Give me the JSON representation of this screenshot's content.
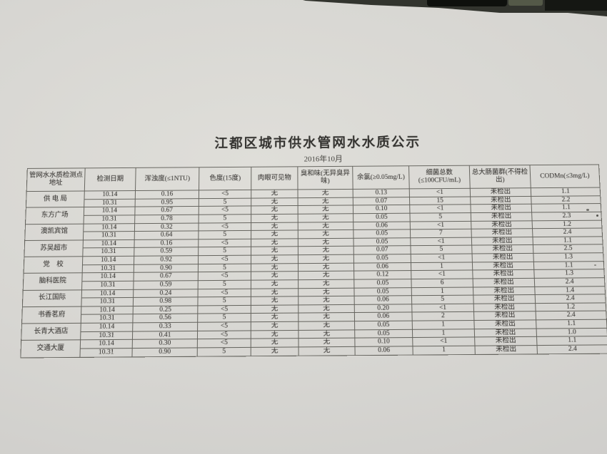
{
  "photo": {
    "background_color": "#32342e",
    "paper_color": "#d7d6d2",
    "ink_color": "#3f3d3a",
    "table_border_color": "#65645e"
  },
  "document": {
    "title": "江都区城市供水管网水水质公示",
    "subtitle": "2016年10月",
    "table": {
      "headers": [
        "管网水水质检测点地址",
        "检测日期",
        "浑浊度(≤1NTU)",
        "色度(15度)",
        "肉眼可见物",
        "臭和味(无异臭异味)",
        "余氯(≥0.05mg/L)",
        "细菌总数(≤100CFU/mL)",
        "总大肠菌群(不得检出)",
        "CODMn(≤3mg/L)"
      ],
      "groups": [
        {
          "location": "供 电 局",
          "rows": [
            [
              "10.14",
              "0.16",
              "<5",
              "无",
              "无",
              "0.13",
              "<1",
              "未检出",
              "1.1"
            ],
            [
              "10.31",
              "0.95",
              "5",
              "无",
              "无",
              "0.07",
              "15",
              "未检出",
              "2.2"
            ]
          ]
        },
        {
          "location": "东方广场",
          "rows": [
            [
              "10.14",
              "0.67",
              "<5",
              "无",
              "无",
              "0.10",
              "<1",
              "未检出",
              "1.1"
            ],
            [
              "10.31",
              "0.78",
              "5",
              "无",
              "无",
              "0.05",
              "5",
              "未检出",
              "2.3"
            ]
          ]
        },
        {
          "location": "澳凯宾馆",
          "rows": [
            [
              "10.14",
              "0.32",
              "<5",
              "无",
              "无",
              "0.06",
              "<1",
              "未检出",
              "1.2"
            ],
            [
              "10.31",
              "0.64",
              "5",
              "无",
              "无",
              "0.05",
              "7",
              "未检出",
              "2.4"
            ]
          ]
        },
        {
          "location": "苏吴超市",
          "rows": [
            [
              "10.14",
              "0.16",
              "<5",
              "无",
              "无",
              "0.05",
              "<1",
              "未检出",
              "1.1"
            ],
            [
              "10.31",
              "0.59",
              "5",
              "无",
              "无",
              "0.07",
              "5",
              "未检出",
              "2.5"
            ]
          ]
        },
        {
          "location": "党　校",
          "rows": [
            [
              "10.14",
              "0.92",
              "<5",
              "无",
              "无",
              "0.05",
              "<1",
              "未检出",
              "1.3"
            ],
            [
              "10.31",
              "0.90",
              "5",
              "无",
              "无",
              "0.06",
              "1",
              "未检出",
              "1.1"
            ]
          ]
        },
        {
          "location": "脑科医院",
          "rows": [
            [
              "10.14",
              "0.67",
              "<5",
              "无",
              "无",
              "0.12",
              "<1",
              "未检出",
              "1.3"
            ],
            [
              "10.31",
              "0.59",
              "5",
              "无",
              "无",
              "0.05",
              "6",
              "未检出",
              "2.4"
            ]
          ]
        },
        {
          "location": "长江国际",
          "rows": [
            [
              "10.14",
              "0.24",
              "<5",
              "无",
              "无",
              "0.05",
              "1",
              "未检出",
              "1.4"
            ],
            [
              "10.31",
              "0.98",
              "5",
              "无",
              "无",
              "0.06",
              "5",
              "未检出",
              "2.4"
            ]
          ]
        },
        {
          "location": "书香茗府",
          "rows": [
            [
              "10.14",
              "0.25",
              "<5",
              "无",
              "无",
              "0.20",
              "<1",
              "未检出",
              "1.2"
            ],
            [
              "10.31",
              "0.56",
              "5",
              "无",
              "无",
              "0.06",
              "2",
              "未检出",
              "2.4"
            ]
          ]
        },
        {
          "location": "长青大酒店",
          "rows": [
            [
              "10.14",
              "0.33",
              "<5",
              "无",
              "无",
              "0.05",
              "1",
              "未检出",
              "1.1"
            ],
            [
              "10.31",
              "0.41",
              "<5",
              "无",
              "无",
              "0.05",
              "1",
              "未检出",
              "1.0"
            ]
          ]
        },
        {
          "location": "交通大厦",
          "rows": [
            [
              "10.14",
              "0.30",
              "<5",
              "无",
              "无",
              "0.10",
              "<1",
              "未检出",
              "1.1"
            ],
            [
              "10.31",
              "0.90",
              "5",
              "无",
              "无",
              "0.06",
              "1",
              "未检出",
              "2.4"
            ]
          ]
        }
      ],
      "column_cell_names": [
        "date-cell",
        "turbidity-cell",
        "chroma-cell",
        "visible-matter-cell",
        "odor-taste-cell",
        "residual-chlorine-cell",
        "bacteria-count-cell",
        "coliform-cell",
        "codmn-cell"
      ]
    }
  }
}
